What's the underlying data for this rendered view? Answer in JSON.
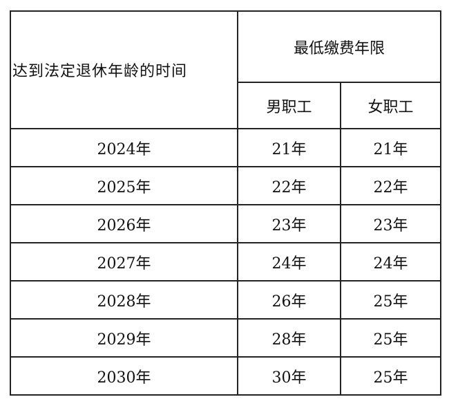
{
  "table": {
    "header": {
      "time_col": "达到法定退休年龄的时间",
      "group": "最低缴费年限",
      "male": "男职工",
      "female": "女职工"
    },
    "rows": [
      {
        "year": "2024年",
        "male": "21年",
        "female": "21年"
      },
      {
        "year": "2025年",
        "male": "22年",
        "female": "22年"
      },
      {
        "year": "2026年",
        "male": "23年",
        "female": "23年"
      },
      {
        "year": "2027年",
        "male": "24年",
        "female": "24年"
      },
      {
        "year": "2028年",
        "male": "26年",
        "female": "25年"
      },
      {
        "year": "2029年",
        "male": "28年",
        "female": "25年"
      },
      {
        "year": "2030年",
        "male": "30年",
        "female": "25年"
      }
    ]
  }
}
